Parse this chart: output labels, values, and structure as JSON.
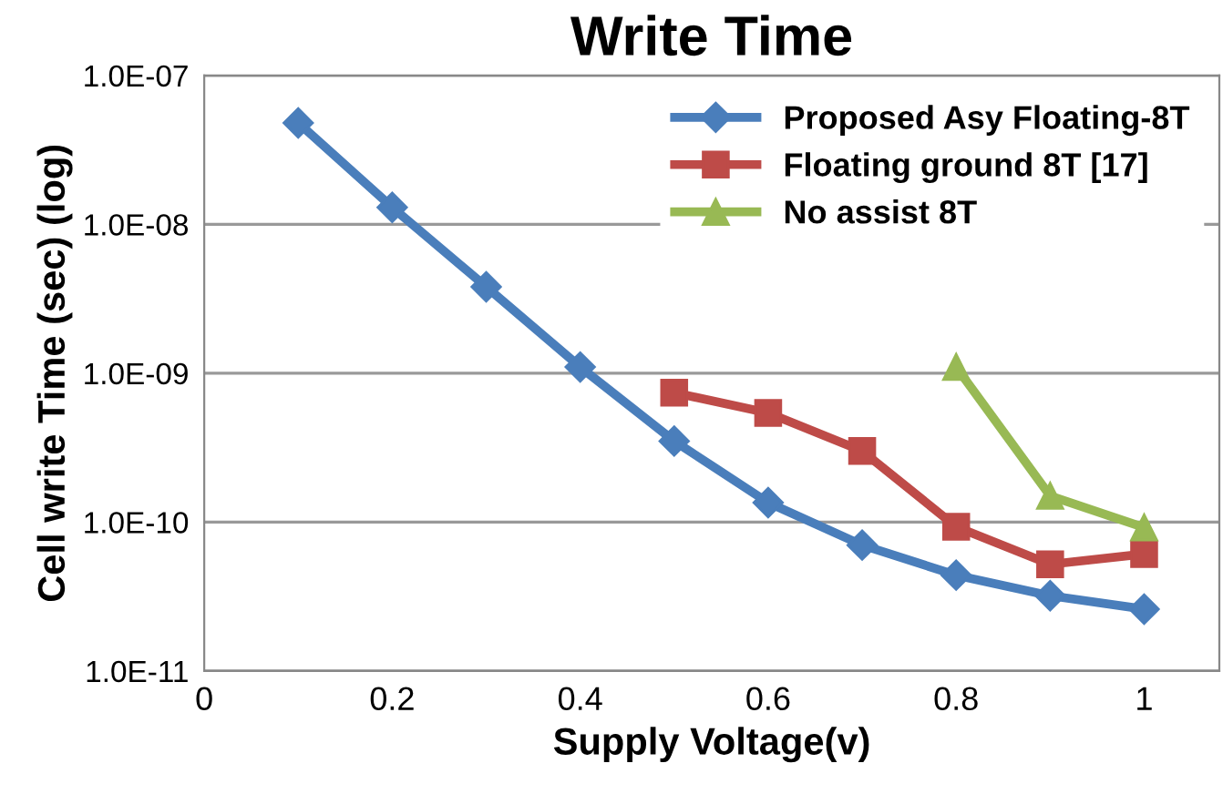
{
  "chart_data": {
    "type": "line",
    "title": "Write Time",
    "xlabel": "Supply Voltage(v)",
    "ylabel": "Cell write Time (sec) (log)",
    "log": "y",
    "grid": "y",
    "legend": "top right",
    "line_style": "solid",
    "xlim": [
      0,
      1.08
    ],
    "xticks": [
      0,
      0.2,
      0.4,
      0.6,
      0.8,
      1
    ],
    "ylim": [
      1e-11,
      1e-07
    ],
    "yticks": [
      {
        "value": 1e-11,
        "label": "1.0E-11"
      },
      {
        "value": 1e-10,
        "label": "1.0E-10"
      },
      {
        "value": 1e-09,
        "label": "1.0E-09"
      },
      {
        "value": 1e-08,
        "label": "1.0E-08"
      },
      {
        "value": 1e-07,
        "label": "1.0E-07"
      }
    ],
    "series": [
      {
        "name": "Proposed Asy Floating-8T",
        "color": "#4a7ebb",
        "marker": "diamond",
        "x": [
          0.1,
          0.2,
          0.3,
          0.4,
          0.5,
          0.6,
          0.7,
          0.8,
          0.9,
          1.0
        ],
        "values": [
          4.8e-08,
          1.3e-08,
          3.8e-09,
          1.1e-09,
          3.5e-10,
          1.35e-10,
          7e-11,
          4.4e-11,
          3.2e-11,
          2.6e-11
        ]
      },
      {
        "name": "Floating ground 8T [17]",
        "color": "#be4b48",
        "marker": "square",
        "x": [
          0.5,
          0.6,
          0.7,
          0.8,
          0.9,
          1.0
        ],
        "values": [
          7.4e-10,
          5.4e-10,
          3e-10,
          9.3e-11,
          5.2e-11,
          6.1e-11
        ]
      },
      {
        "name": "No assist 8T",
        "color": "#98b954",
        "marker": "triangle",
        "x": [
          0.8,
          0.9,
          1.0
        ],
        "values": [
          1.1e-09,
          1.5e-10,
          9.2e-11
        ]
      }
    ]
  }
}
